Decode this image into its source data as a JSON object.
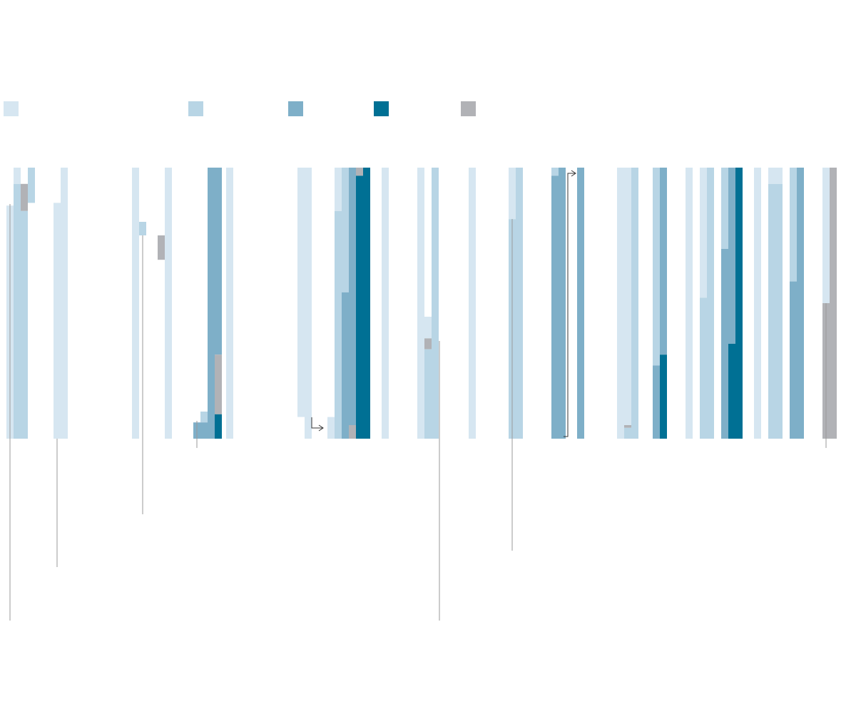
{
  "chart_data": {
    "type": "bar",
    "stacked": true,
    "orientation": "vertical",
    "value_scale": "fraction of 1",
    "title": "",
    "xlabel": "",
    "ylabel": "",
    "legend": {
      "placement": "top-left",
      "entries": [
        {
          "key": "c1",
          "color": "#d6e6f1"
        },
        {
          "key": "c2",
          "color": "#b8d5e5"
        },
        {
          "key": "c3",
          "color": "#7eafc8"
        },
        {
          "key": "c4",
          "color": "#007094"
        },
        {
          "key": "c5",
          "color": "#b1b2b6"
        }
      ]
    },
    "grid": false,
    "columns": [
      {
        "panel": 1,
        "pos": 0,
        "segments": [
          {
            "key": "c1",
            "from": 0.86,
            "to": 0.0
          }
        ]
      },
      {
        "panel": 1,
        "pos": 1,
        "segments": [
          {
            "key": "c1",
            "from": 1.0,
            "to": 0.94
          },
          {
            "key": "c2",
            "from": 0.94,
            "to": 0.0
          }
        ]
      },
      {
        "panel": 1,
        "pos": 2,
        "segments": [
          {
            "key": "c5",
            "from": 0.94,
            "to": 0.84
          },
          {
            "key": "c2",
            "from": 0.84,
            "to": 0.0
          }
        ]
      },
      {
        "panel": 1,
        "pos": 3,
        "segments": [
          {
            "key": "c2",
            "from": 1.0,
            "to": 0.87
          }
        ]
      },
      {
        "panel": 2,
        "pos": 0,
        "segments": [
          {
            "key": "c1",
            "from": 0.87,
            "to": 0.0
          }
        ]
      },
      {
        "panel": 2,
        "pos": 1,
        "segments": [
          {
            "key": "c1",
            "from": 1.0,
            "to": 0.0
          }
        ]
      },
      {
        "panel": 2,
        "pos": 11,
        "segments": [
          {
            "key": "c1",
            "from": 1.0,
            "to": 0.0
          }
        ]
      },
      {
        "panel": 2,
        "pos": 12,
        "segments": [
          {
            "key": "c2",
            "from": 0.8,
            "to": 0.75
          }
        ]
      },
      {
        "panel": 3,
        "pos": 0,
        "segments": [
          {
            "key": "c5",
            "from": 0.75,
            "to": 0.66
          }
        ]
      },
      {
        "panel": 3,
        "pos": 1,
        "segments": [
          {
            "key": "c1",
            "from": 1.0,
            "to": 0.0
          }
        ]
      },
      {
        "panel": 3,
        "pos": 5,
        "segments": [
          {
            "key": "c3",
            "from": 0.06,
            "to": 0.0
          }
        ]
      },
      {
        "panel": 3,
        "pos": 6,
        "segments": [
          {
            "key": "c2",
            "from": 0.1,
            "to": 0.06
          },
          {
            "key": "c3",
            "from": 0.06,
            "to": 0.0
          }
        ]
      },
      {
        "panel": 3,
        "pos": 7,
        "segments": [
          {
            "key": "c3",
            "from": 1.0,
            "to": 0.0
          }
        ]
      },
      {
        "panel": 3,
        "pos": 8,
        "segments": [
          {
            "key": "c3",
            "from": 1.0,
            "to": 0.31
          },
          {
            "key": "c5",
            "from": 0.31,
            "to": 0.09
          },
          {
            "key": "c4",
            "from": 0.09,
            "to": 0.0
          }
        ]
      },
      {
        "panel": 4,
        "pos": 0,
        "segments": [
          {
            "key": "c1",
            "from": 1.0,
            "to": 0.0
          }
        ]
      },
      {
        "panel": 4,
        "pos": 10,
        "segments": [
          {
            "key": "c1",
            "from": 1.0,
            "to": 0.08
          }
        ]
      },
      {
        "panel": 4,
        "pos": 11,
        "segments": [
          {
            "key": "c1",
            "from": 1.0,
            "to": 0.0
          }
        ]
      },
      {
        "panel": 5,
        "pos": 0,
        "segments": [
          {
            "key": "c1",
            "from": 0.08,
            "to": 0.0
          }
        ]
      },
      {
        "panel": 5,
        "pos": 1,
        "segments": [
          {
            "key": "c1",
            "from": 1.0,
            "to": 0.84
          },
          {
            "key": "c2",
            "from": 0.84,
            "to": 0.0
          }
        ]
      },
      {
        "panel": 5,
        "pos": 2,
        "segments": [
          {
            "key": "c2",
            "from": 1.0,
            "to": 0.54
          },
          {
            "key": "c3",
            "from": 0.54,
            "to": 0.0
          }
        ]
      },
      {
        "panel": 5,
        "pos": 3,
        "segments": [
          {
            "key": "c3",
            "from": 1.0,
            "to": 0.05
          },
          {
            "key": "c5",
            "from": 0.05,
            "to": 0.0
          }
        ]
      },
      {
        "panel": 5,
        "pos": 4,
        "segments": [
          {
            "key": "c5",
            "from": 1.0,
            "to": 0.97
          },
          {
            "key": "c4",
            "from": 0.97,
            "to": 0.0
          }
        ]
      },
      {
        "panel": 5,
        "pos": 5,
        "segments": [
          {
            "key": "c4",
            "from": 1.0,
            "to": 0.0
          }
        ]
      },
      {
        "panel": 6,
        "pos": 0,
        "segments": [
          {
            "key": "c1",
            "from": 1.0,
            "to": 0.0
          }
        ]
      },
      {
        "panel": 6,
        "pos": 5,
        "segments": [
          {
            "key": "c1",
            "from": 1.0,
            "to": 0.45
          }
        ]
      },
      {
        "panel": 6,
        "pos": 5,
        "segments": [
          {
            "key": "c1",
            "from": 0.45,
            "to": 0.0
          }
        ]
      },
      {
        "panel": 6,
        "pos": 6,
        "segments": [
          {
            "key": "c1",
            "from": 0.45,
            "to": 0.37
          },
          {
            "key": "c5",
            "from": 0.37,
            "to": 0.33
          },
          {
            "key": "c2",
            "from": 0.33,
            "to": 0.0
          }
        ]
      },
      {
        "panel": 6,
        "pos": 7,
        "segments": [
          {
            "key": "c2",
            "from": 1.0,
            "to": 0.0
          }
        ]
      },
      {
        "panel": 7,
        "pos": 0,
        "segments": [
          {
            "key": "c1",
            "from": 1.0,
            "to": 0.0
          }
        ]
      },
      {
        "panel": 8,
        "pos": 0,
        "segments": [
          {
            "key": "c1",
            "from": 1.0,
            "to": 0.81
          },
          {
            "key": "c2",
            "from": 0.81,
            "to": 0.0
          }
        ]
      },
      {
        "panel": 8,
        "pos": 1,
        "segments": [
          {
            "key": "c2",
            "from": 1.0,
            "to": 0.0
          }
        ]
      },
      {
        "panel": 8,
        "pos": 6,
        "segments": [
          {
            "key": "c2",
            "from": 1.0,
            "to": 0.97
          },
          {
            "key": "c3",
            "from": 0.97,
            "to": 0.0
          }
        ]
      },
      {
        "panel": 8,
        "pos": 7,
        "segments": [
          {
            "key": "c3",
            "from": 1.0,
            "to": 0.0
          }
        ]
      },
      {
        "panel": 9,
        "pos": 0,
        "segments": [
          {
            "key": "c3",
            "from": 1.0,
            "to": 0.0
          }
        ]
      },
      {
        "panel": 10,
        "pos": 0,
        "segments": [
          {
            "key": "c1",
            "from": 1.0,
            "to": 0.0
          }
        ]
      },
      {
        "panel": 10,
        "pos": 1,
        "segments": [
          {
            "key": "c1",
            "from": 1.0,
            "to": 0.05
          },
          {
            "key": "c5",
            "from": 0.05,
            "to": 0.04
          },
          {
            "key": "c2",
            "from": 0.04,
            "to": 0.0
          }
        ]
      },
      {
        "panel": 10,
        "pos": 2,
        "segments": [
          {
            "key": "c2",
            "from": 1.0,
            "to": 0.0
          }
        ]
      },
      {
        "panel": 10,
        "pos": 5,
        "segments": [
          {
            "key": "c2",
            "from": 1.0,
            "to": 0.27
          },
          {
            "key": "c3",
            "from": 0.27,
            "to": 0.0
          }
        ]
      },
      {
        "panel": 10,
        "pos": 6,
        "segments": [
          {
            "key": "c3",
            "from": 1.0,
            "to": 0.31
          },
          {
            "key": "c4",
            "from": 0.31,
            "to": 0.0
          }
        ]
      },
      {
        "panel": 11,
        "pos": 0,
        "segments": [
          {
            "key": "c1",
            "from": 1.0,
            "to": 0.0
          }
        ]
      },
      {
        "panel": 11,
        "pos": 2,
        "segments": [
          {
            "key": "c1",
            "from": 1.0,
            "to": 0.52
          },
          {
            "key": "c2",
            "from": 0.52,
            "to": 0.0
          }
        ]
      },
      {
        "panel": 11,
        "pos": 3,
        "segments": [
          {
            "key": "c2",
            "from": 1.0,
            "to": 0.0
          }
        ]
      },
      {
        "panel": 11,
        "pos": 5,
        "segments": [
          {
            "key": "c2",
            "from": 1.0,
            "to": 0.7
          },
          {
            "key": "c3",
            "from": 0.7,
            "to": 0.0
          }
        ]
      },
      {
        "panel": 11,
        "pos": 6,
        "segments": [
          {
            "key": "c3",
            "from": 1.0,
            "to": 0.35
          },
          {
            "key": "c4",
            "from": 0.35,
            "to": 0.0
          }
        ]
      },
      {
        "panel": 11,
        "pos": 7,
        "segments": [
          {
            "key": "c4",
            "from": 1.0,
            "to": 0.0
          }
        ]
      },
      {
        "panel": 12,
        "pos": 0,
        "segments": [
          {
            "key": "c1",
            "from": 1.0,
            "to": 0.0
          }
        ]
      },
      {
        "panel": 12,
        "pos": 2,
        "segments": [
          {
            "key": "c1",
            "from": 1.0,
            "to": 0.94
          },
          {
            "key": "c2",
            "from": 0.94,
            "to": 0.0
          }
        ]
      },
      {
        "panel": 12,
        "pos": 3,
        "segments": [
          {
            "key": "c1",
            "from": 1.0,
            "to": 0.94
          },
          {
            "key": "c2",
            "from": 0.94,
            "to": 0.0
          }
        ]
      },
      {
        "panel": 12,
        "pos": 5,
        "segments": [
          {
            "key": "c2",
            "from": 1.0,
            "to": 0.58
          },
          {
            "key": "c3",
            "from": 0.58,
            "to": 0.0
          }
        ]
      },
      {
        "panel": 12,
        "pos": 6,
        "segments": [
          {
            "key": "c3",
            "from": 1.0,
            "to": 0.0
          }
        ]
      },
      {
        "panel": 13,
        "pos": 0,
        "segments": [
          {
            "key": "c1",
            "from": 1.0,
            "to": 0.5
          },
          {
            "key": "c5",
            "from": 0.5,
            "to": 0.0
          }
        ]
      },
      {
        "panel": 13,
        "pos": 1,
        "segments": [
          {
            "key": "c5",
            "from": 1.0,
            "to": 0.0
          }
        ]
      }
    ]
  }
}
